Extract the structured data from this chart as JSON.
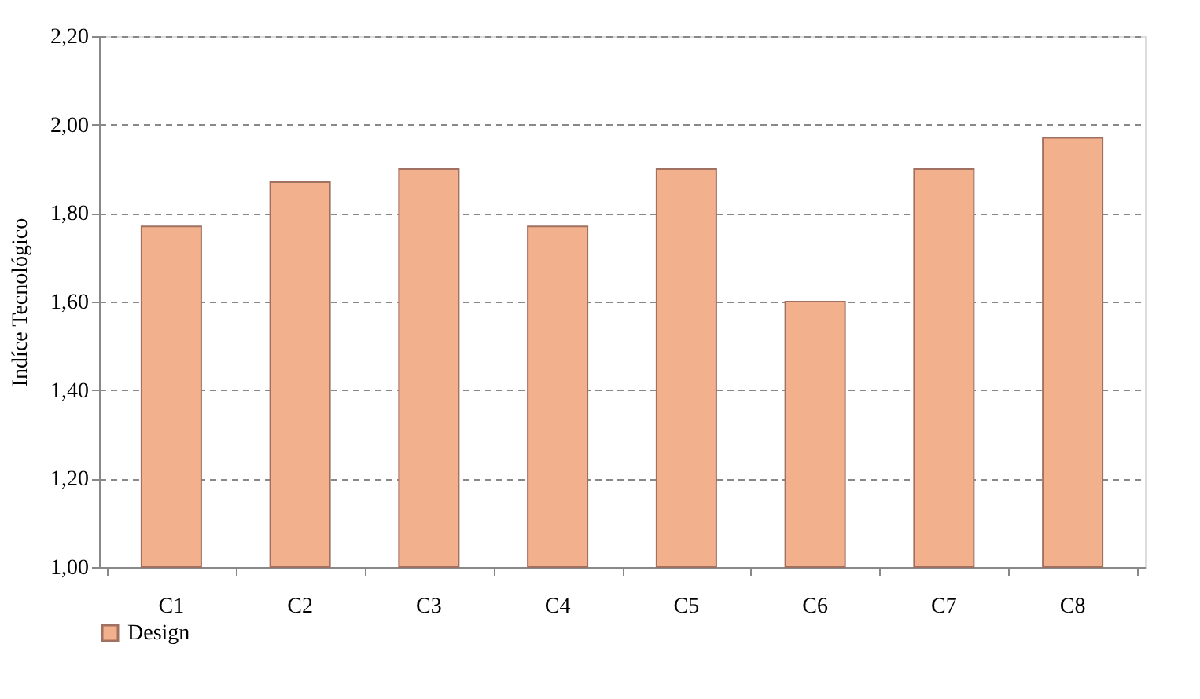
{
  "chart_data": {
    "type": "bar",
    "ylabel": "Indíce Tecnológico",
    "categories": [
      "C1",
      "C2",
      "C3",
      "C4",
      "C5",
      "C6",
      "C7",
      "C8"
    ],
    "series": [
      {
        "name": "Design",
        "color": "#f2b08c",
        "values": [
          1.77,
          1.87,
          1.9,
          1.77,
          1.9,
          1.6,
          1.9,
          1.97
        ]
      }
    ],
    "ylim": [
      1.0,
      2.2
    ],
    "yticks": [
      {
        "value": 1.0,
        "label": "1,00"
      },
      {
        "value": 1.2,
        "label": "1,20"
      },
      {
        "value": 1.4,
        "label": "1,40"
      },
      {
        "value": 1.6,
        "label": "1,60"
      },
      {
        "value": 1.8,
        "label": "1,80"
      },
      {
        "value": 2.0,
        "label": "2,00"
      },
      {
        "value": 2.2,
        "label": "2,20"
      }
    ],
    "grid": "y",
    "legend": "bottom"
  }
}
